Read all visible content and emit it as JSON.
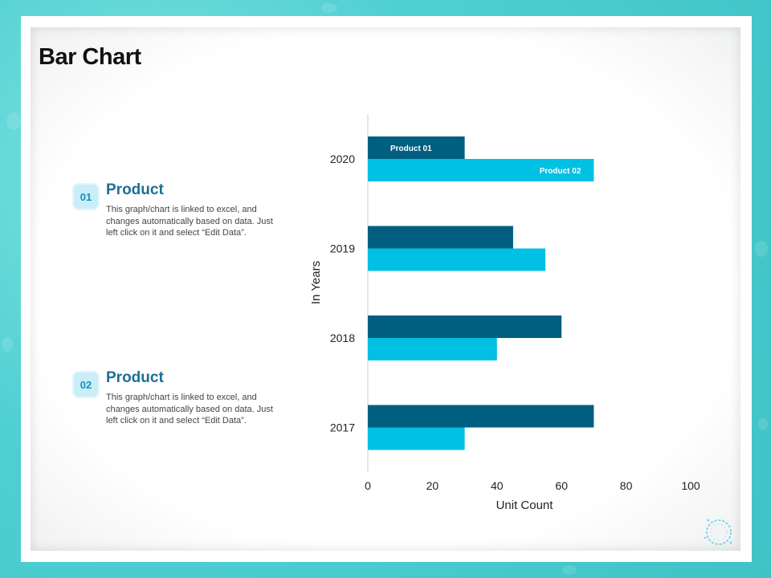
{
  "title": "Bar Chart",
  "items": [
    {
      "number": "01",
      "heading": "Product",
      "text": "This graph/chart is linked to excel, and changes automatically based on data. Just left click on it and select “Edit Data”."
    },
    {
      "number": "02",
      "heading": "Product",
      "text": "This graph/chart is linked to excel, and changes automatically based on data. Just left click on it and select “Edit Data”."
    }
  ],
  "colors": {
    "product_01": "#005f80",
    "product_02": "#00c0e4",
    "background": "#4fcfd1"
  },
  "chart_data": {
    "type": "bar",
    "orientation": "horizontal",
    "categories": [
      "2020",
      "2019",
      "2018",
      "2017"
    ],
    "series": [
      {
        "name": "Product 01",
        "values": [
          30,
          45,
          60,
          70
        ]
      },
      {
        "name": "Product 02",
        "values": [
          70,
          55,
          40,
          30
        ]
      }
    ],
    "xlabel": "Unit Count",
    "ylabel": "In Years",
    "xlim": [
      0,
      100
    ],
    "xticks": [
      "0",
      "20",
      "40",
      "60",
      "80",
      "100"
    ],
    "grid": false,
    "legend": "labels inside bars"
  }
}
